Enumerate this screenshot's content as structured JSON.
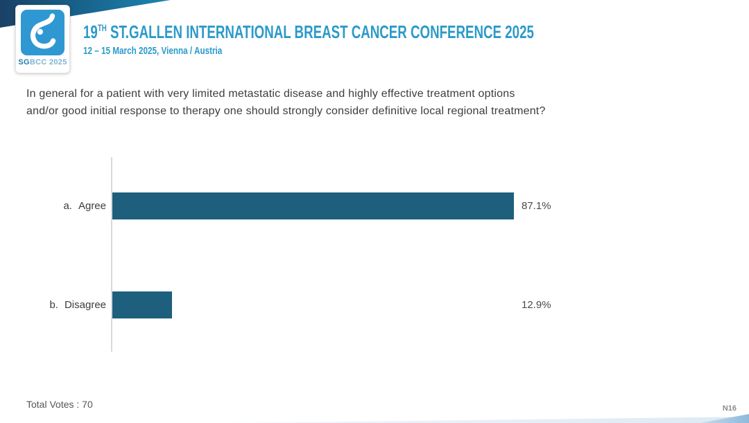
{
  "header": {
    "title_number": "19",
    "title_superscript": "TH",
    "title_rest": " ST.GALLEN INTERNATIONAL BREAST CANCER CONFERENCE 2025",
    "subtitle": "12 – 15 March 2025, Vienna / Austria",
    "logo_text_bold": "SG",
    "logo_text_rest": "BCC 2025"
  },
  "question": {
    "line1": "In general for a patient with very limited metastatic disease and highly effective treatment options",
    "line2": "and/or good initial response to therapy one should strongly consider definitive local regional treatment?"
  },
  "chart_data": {
    "type": "bar",
    "orientation": "horizontal",
    "title": "",
    "categories": [
      "a. Agree",
      "b. Disagree"
    ],
    "values": [
      87.1,
      12.9
    ],
    "value_labels": [
      "87.1%",
      "12.9%"
    ],
    "xlim": [
      0,
      100
    ],
    "grid": false,
    "legend": false,
    "bar_color": "#1E5F7E",
    "total_votes": 70
  },
  "bars": [
    {
      "prefix": "a.",
      "label": "Agree",
      "value": "87.1%"
    },
    {
      "prefix": "b.",
      "label": "Disagree",
      "value": "12.9%"
    }
  ],
  "footer": {
    "total_votes_label": "Total Votes : 70",
    "slide_code": "N16"
  },
  "colors": {
    "accent_blue": "#2B9AC9",
    "bar_teal": "#1E5F7E",
    "logo_blue": "#2F98D2",
    "wedge_dark": "#1A4066",
    "wedge_teal": "#1C85B2"
  }
}
